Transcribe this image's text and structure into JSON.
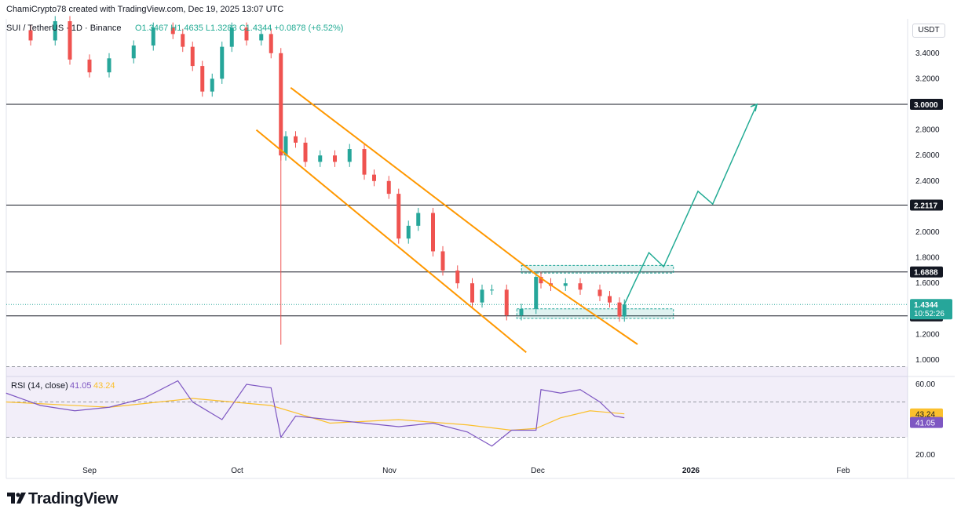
{
  "header": {
    "created_by": "ChamiCrypto78 created with TradingView.com, Dec 19, 2025 13:07 UTC",
    "symbol": "SUI / TetherUS · 1D · Binance",
    "ohlc": "O1.3467 H1.4635 L1.3283 C1.4344 +0.0878 (+6.52%)"
  },
  "price_axis": {
    "unit": "USDT",
    "ticks": [
      "3.4000",
      "3.2000",
      "3.0000",
      "2.8000",
      "2.6000",
      "2.4000",
      "2.2000",
      "2.0000",
      "1.8000",
      "1.6000",
      "1.4000",
      "1.2000",
      "1.0000"
    ],
    "level_labels": [
      "3.0000",
      "2.2117",
      "1.6888",
      "1.3451"
    ],
    "current_price": "1.4344",
    "countdown": "10:52:26"
  },
  "rsi": {
    "label": "RSI (14, close)",
    "value": "41.05",
    "ma_value": "43.24",
    "ticks": [
      "60.00",
      "20.00"
    ]
  },
  "time_axis": [
    "Sep",
    "Oct",
    "Nov",
    "Dec",
    "2026",
    "Feb"
  ],
  "footer": {
    "brand": "TradingView"
  },
  "colors": {
    "up": "#26a69a",
    "down": "#ef5350",
    "channel": "#ff9800",
    "projection": "#22ab94",
    "rsi_line": "#7e57c2",
    "rsi_ma": "#fbc02d",
    "level": "#131722"
  },
  "chart_data": [
    {
      "type": "candlestick",
      "title": "SUI / TetherUS · 1D · Binance",
      "ylabel": "USDT",
      "ylim": [
        0.87,
        3.55
      ],
      "x_ticks": [
        "Sep",
        "Oct",
        "Nov",
        "Dec",
        "2026",
        "Feb"
      ],
      "grid": false,
      "horizontal_levels": [
        3.0,
        2.2117,
        1.6888,
        1.3451
      ],
      "last_close": 1.4344,
      "close_series": {
        "x": [
          "Aug 15",
          "Aug 20",
          "Aug 25",
          "Aug 28",
          "Sep 1",
          "Sep 5",
          "Sep 10",
          "Sep 14",
          "Sep 18",
          "Sep 20",
          "Sep 22",
          "Sep 24",
          "Sep 26",
          "Sep 28",
          "Sep 30",
          "Oct 3",
          "Oct 6",
          "Oct 8",
          "Oct 10",
          "Oct 11",
          "Oct 13",
          "Oct 15",
          "Oct 18",
          "Oct 21",
          "Oct 24",
          "Oct 27",
          "Oct 29",
          "Nov 1",
          "Nov 3",
          "Nov 5",
          "Nov 7",
          "Nov 10",
          "Nov 12",
          "Nov 15",
          "Nov 18",
          "Nov 20",
          "Nov 22",
          "Nov 25",
          "Nov 28",
          "Dec 1",
          "Dec 2",
          "Dec 4",
          "Dec 7",
          "Dec 10",
          "Dec 14",
          "Dec 16",
          "Dec 18",
          "Dec 19"
        ],
        "close": [
          3.58,
          3.5,
          3.65,
          3.35,
          3.25,
          3.36,
          3.46,
          3.6,
          3.55,
          3.45,
          3.3,
          3.1,
          3.2,
          3.45,
          3.6,
          3.5,
          3.55,
          3.4,
          2.6,
          2.75,
          2.7,
          2.55,
          2.6,
          2.55,
          2.65,
          2.45,
          2.4,
          2.3,
          1.95,
          2.05,
          2.15,
          1.85,
          1.7,
          1.6,
          1.45,
          1.55,
          1.55,
          1.35,
          1.4,
          1.65,
          1.6,
          1.58,
          1.6,
          1.55,
          1.5,
          1.45,
          1.34,
          1.4344
        ]
      },
      "annotations": {
        "descending_channel": {
          "upper": [
            [
              "Oct 12",
              3.13
            ],
            [
              "Dec 2",
              1.64
            ]
          ],
          "lower": [
            [
              "Oct 5",
              2.8
            ],
            [
              "Nov 29",
              1.06
            ]
          ]
        },
        "support_zone": [
          1.325,
          1.4
        ],
        "resistance_zone": [
          1.68,
          1.74
        ],
        "projection_path": [
          [
            "Dec 19",
            1.4344
          ],
          [
            "Dec 21",
            1.6
          ],
          [
            "Dec 24",
            1.84
          ],
          [
            "Dec 27",
            1.73
          ],
          [
            "Jan 3",
            2.32
          ],
          [
            "Jan 6",
            2.22
          ],
          [
            "Jan 15",
            3.0
          ]
        ]
      }
    },
    {
      "type": "line",
      "title": "RSI (14, close)",
      "ylim": [
        18,
        82
      ],
      "x_ticks": [
        "Sep",
        "Oct",
        "Nov",
        "Dec",
        "2026",
        "Feb"
      ],
      "reference_lines": [
        70,
        50,
        30
      ],
      "series": [
        {
          "name": "RSI (14, close)",
          "x": [
            "Aug 15",
            "Aug 22",
            "Aug 29",
            "Sep 5",
            "Sep 12",
            "Sep 19",
            "Sep 22",
            "Sep 28",
            "Oct 3",
            "Oct 8",
            "Oct 10",
            "Oct 13",
            "Oct 20",
            "Oct 27",
            "Nov 3",
            "Nov 10",
            "Nov 17",
            "Nov 22",
            "Nov 26",
            "Dec 1",
            "Dec 2",
            "Dec 6",
            "Dec 10",
            "Dec 14",
            "Dec 17",
            "Dec 19"
          ],
          "values": [
            55,
            48,
            45,
            47,
            52,
            62,
            50,
            40,
            60,
            58,
            30,
            42,
            40,
            38,
            36,
            38,
            33,
            25,
            34,
            34,
            57,
            55,
            57,
            50,
            42,
            41.05
          ]
        },
        {
          "name": "RSI-based MA",
          "x": [
            "Aug 15",
            "Sep 5",
            "Sep 22",
            "Oct 8",
            "Oct 20",
            "Nov 3",
            "Nov 17",
            "Nov 26",
            "Dec 1",
            "Dec 6",
            "Dec 12",
            "Dec 19"
          ],
          "values": [
            50,
            47,
            52,
            48,
            38,
            40,
            37,
            34,
            35,
            41,
            45,
            43.24
          ]
        }
      ]
    }
  ]
}
